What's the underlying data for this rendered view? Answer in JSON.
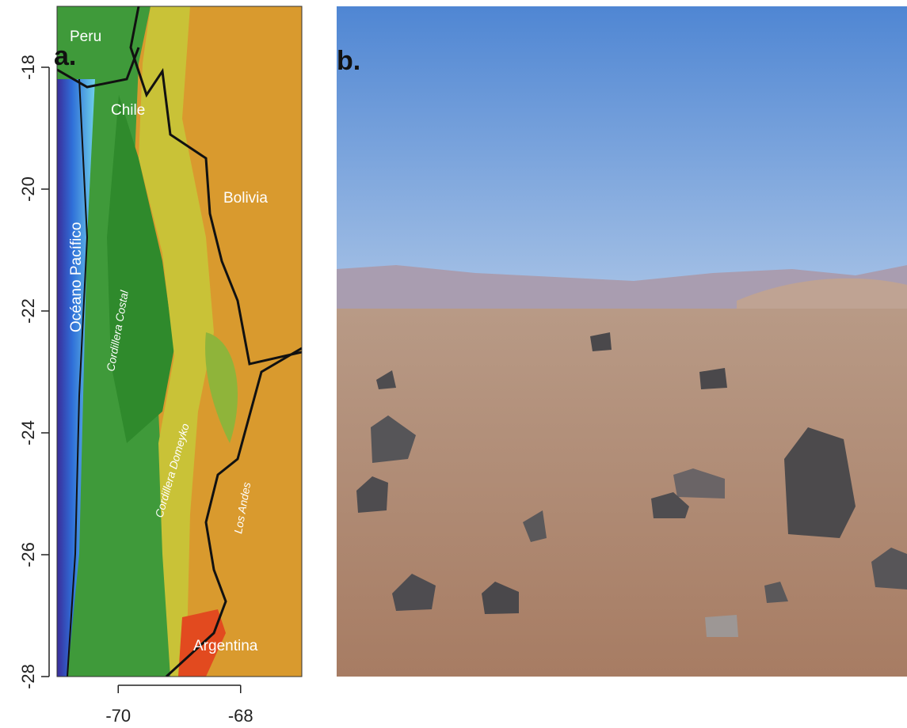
{
  "panel_a": {
    "label": "a.",
    "xlim": [
      -71,
      -67
    ],
    "ylim": [
      -28,
      -17
    ],
    "xticks": [
      -70,
      -68
    ],
    "yticks": [
      -18,
      -20,
      -22,
      -24,
      -26,
      -28
    ],
    "places": [
      "Peru",
      "Chile",
      "Bolivia",
      "Océano Pacífico",
      "Argentina"
    ],
    "ranges": [
      "Cordillera Costal",
      "Cordillera Domeyko",
      "Los Andes"
    ]
  },
  "panel_b": {
    "label": "b."
  }
}
